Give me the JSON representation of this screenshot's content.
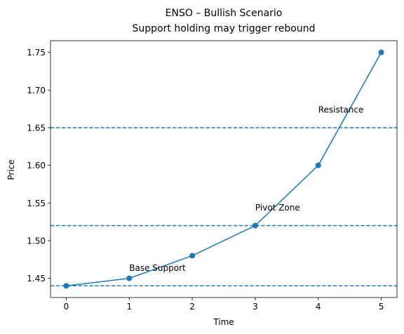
{
  "chart_data": {
    "type": "line",
    "title": "ENSO – Bullish Scenario",
    "subtitle": "Support holding may trigger rebound",
    "xlabel": "Time",
    "ylabel": "Price",
    "x": [
      0,
      1,
      2,
      3,
      4,
      5
    ],
    "series": [
      {
        "values": [
          1.44,
          1.45,
          1.48,
          1.52,
          1.6,
          1.75
        ],
        "color": "#1f77b4",
        "marker": "circle"
      }
    ],
    "xlim": [
      -0.25,
      5.25
    ],
    "ylim": [
      1.4245,
      1.7655
    ],
    "xticks": [
      0,
      1,
      2,
      3,
      4,
      5
    ],
    "yticks": [
      1.45,
      1.5,
      1.55,
      1.6,
      1.65,
      1.7,
      1.75
    ],
    "xtick_labels": [
      "0",
      "1",
      "2",
      "3",
      "4",
      "5"
    ],
    "ytick_labels": [
      "1.45",
      "1.50",
      "1.55",
      "1.60",
      "1.65",
      "1.70",
      "1.75"
    ],
    "hlines": [
      {
        "y": 1.44,
        "style": "dashed",
        "color": "#1f77b4"
      },
      {
        "y": 1.52,
        "style": "dashed",
        "color": "#1f77b4"
      },
      {
        "y": 1.65,
        "style": "dashed",
        "color": "#1f77b4"
      }
    ],
    "annotations": [
      {
        "text": "Base Support",
        "x": 1,
        "y": 1.46
      },
      {
        "text": "Pivot Zone",
        "x": 3,
        "y": 1.54
      },
      {
        "text": "Resistance",
        "x": 4,
        "y": 1.67
      }
    ],
    "grid": false,
    "legend": "none"
  }
}
